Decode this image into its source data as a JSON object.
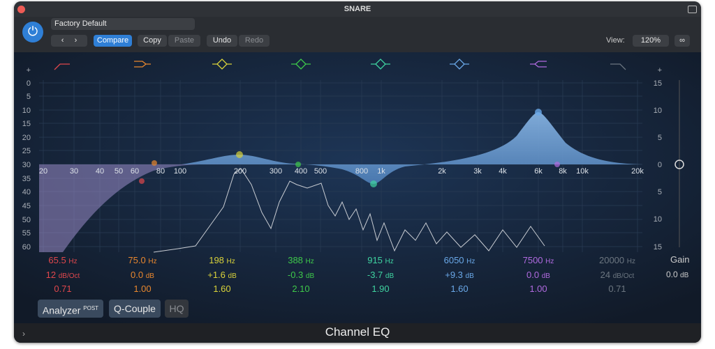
{
  "window": {
    "title": "SNARE"
  },
  "toolbar": {
    "preset": "Factory Default",
    "compare": "Compare",
    "copy": "Copy",
    "paste": "Paste",
    "undo": "Undo",
    "redo": "Redo",
    "view_label": "View:",
    "view_value": "120%"
  },
  "analyzer_scale": [
    "+",
    "0",
    "5",
    "10",
    "15",
    "20",
    "25",
    "30",
    "35",
    "40",
    "45",
    "50",
    "55",
    "60"
  ],
  "gain_scale": [
    "+",
    "15",
    "10",
    "5",
    "0",
    "5",
    "10",
    "15"
  ],
  "freq_labels": [
    "20",
    "30",
    "40",
    "50",
    "60",
    "80",
    "100",
    "200",
    "300",
    "400",
    "500",
    "800",
    "1k",
    "2k",
    "3k",
    "4k",
    "6k",
    "8k",
    "10k",
    "20k"
  ],
  "bands": [
    {
      "freq": "65.5",
      "freq_unit": "Hz",
      "gain": "12",
      "gain_unit": "dB/Oct",
      "q": "0.71",
      "color": "#e0474c"
    },
    {
      "freq": "75.0",
      "freq_unit": "Hz",
      "gain": "0.0",
      "gain_unit": "dB",
      "q": "1.00",
      "color": "#e8872e"
    },
    {
      "freq": "198",
      "freq_unit": "Hz",
      "gain": "+1.6",
      "gain_unit": "dB",
      "q": "1.60",
      "color": "#d9d23a"
    },
    {
      "freq": "388",
      "freq_unit": "Hz",
      "gain": "-0.3",
      "gain_unit": "dB",
      "q": "2.10",
      "color": "#3ec94a"
    },
    {
      "freq": "915",
      "freq_unit": "Hz",
      "gain": "-3.7",
      "gain_unit": "dB",
      "q": "1.90",
      "color": "#3fd3a0"
    },
    {
      "freq": "6050",
      "freq_unit": "Hz",
      "gain": "+9.3",
      "gain_unit": "dB",
      "q": "1.60",
      "color": "#6aa8e8"
    },
    {
      "freq": "7500",
      "freq_unit": "Hz",
      "gain": "0.0",
      "gain_unit": "dB",
      "q": "1.00",
      "color": "#b06ae0"
    },
    {
      "freq": "20000",
      "freq_unit": "Hz",
      "gain": "24",
      "gain_unit": "dB/Oct",
      "q": "0.71",
      "color": "#6c7680"
    }
  ],
  "master_gain": {
    "label": "Gain",
    "value": "0.0",
    "unit": "dB"
  },
  "buttons": {
    "analyzer": "Analyzer",
    "analyzer_mode": "POST",
    "q_couple": "Q-Couple",
    "hq": "HQ"
  },
  "footer": {
    "title": "Channel EQ"
  }
}
